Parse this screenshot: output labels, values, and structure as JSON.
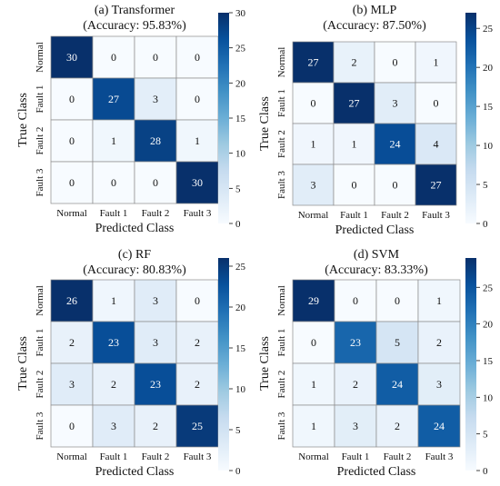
{
  "colors": {
    "low": "#f7fbff",
    "high": "#08306b",
    "grid": "#8c8c8c",
    "text_dark": "#111111",
    "text_light": "#ffffff"
  },
  "chart_data": [
    {
      "type": "heatmap",
      "title": "(a) Transformer",
      "subtitle": "(Accuracy: 95.83%)",
      "xlabel": "Predicted Class",
      "ylabel": "True Class",
      "x_categories": [
        "Normal",
        "Fault 1",
        "Fault 2",
        "Fault 3"
      ],
      "y_categories": [
        "Normal",
        "Fault 1",
        "Fault 2",
        "Fault 3"
      ],
      "values": [
        [
          30,
          0,
          0,
          0
        ],
        [
          0,
          27,
          3,
          0
        ],
        [
          0,
          1,
          28,
          1
        ],
        [
          0,
          0,
          0,
          30
        ]
      ],
      "colorbar": {
        "vmin": 0,
        "vmax": 30,
        "ticks": [
          "0",
          "5",
          "10",
          "15",
          "20",
          "25",
          "30"
        ],
        "tick_values": [
          0,
          5,
          10,
          15,
          20,
          25,
          30
        ]
      }
    },
    {
      "type": "heatmap",
      "title": "(b) MLP",
      "subtitle": "(Accuracy: 87.50%)",
      "xlabel": "Predicted Class",
      "ylabel": "True Class",
      "x_categories": [
        "Normal",
        "Fault 1",
        "Fault 2",
        "Fault 3"
      ],
      "y_categories": [
        "Normal",
        "Fault 1",
        "Fault 2",
        "Fault 3"
      ],
      "values": [
        [
          27,
          2,
          0,
          1
        ],
        [
          0,
          27,
          3,
          0
        ],
        [
          1,
          1,
          24,
          4
        ],
        [
          3,
          0,
          0,
          27
        ]
      ],
      "colorbar": {
        "vmin": 0,
        "vmax": 27,
        "ticks": [
          "0",
          "5",
          "10",
          "15",
          "20",
          "25"
        ],
        "tick_values": [
          0,
          5,
          10,
          15,
          20,
          25
        ]
      }
    },
    {
      "type": "heatmap",
      "title": "(c) RF",
      "subtitle": "(Accuracy: 80.83%)",
      "xlabel": "Predicted Class",
      "ylabel": "True Class",
      "x_categories": [
        "Normal",
        "Fault 1",
        "Fault 2",
        "Fault 3"
      ],
      "y_categories": [
        "Normal",
        "Fault 1",
        "Fault 2",
        "Fault 3"
      ],
      "values": [
        [
          26,
          1,
          3,
          0
        ],
        [
          2,
          23,
          3,
          2
        ],
        [
          3,
          2,
          23,
          2
        ],
        [
          0,
          3,
          2,
          25
        ]
      ],
      "colorbar": {
        "vmin": 0,
        "vmax": 26,
        "ticks": [
          "0",
          "5",
          "10",
          "15",
          "20",
          "25"
        ],
        "tick_values": [
          0,
          5,
          10,
          15,
          20,
          25
        ]
      }
    },
    {
      "type": "heatmap",
      "title": "(d) SVM",
      "subtitle": "(Accuracy: 83.33%)",
      "xlabel": "Predicted Class",
      "ylabel": "True Class",
      "x_categories": [
        "Normal",
        "Fault 1",
        "Fault 2",
        "Fault 3"
      ],
      "y_categories": [
        "Normal",
        "Fault 1",
        "Fault 2",
        "Fault 3"
      ],
      "values": [
        [
          29,
          0,
          0,
          1
        ],
        [
          0,
          23,
          5,
          2
        ],
        [
          1,
          2,
          24,
          3
        ],
        [
          1,
          3,
          2,
          24
        ]
      ],
      "colorbar": {
        "vmin": 0,
        "vmax": 29,
        "ticks": [
          "0",
          "5",
          "10",
          "15",
          "20",
          "25"
        ],
        "tick_values": [
          0,
          5,
          10,
          15,
          20,
          25
        ]
      }
    }
  ]
}
